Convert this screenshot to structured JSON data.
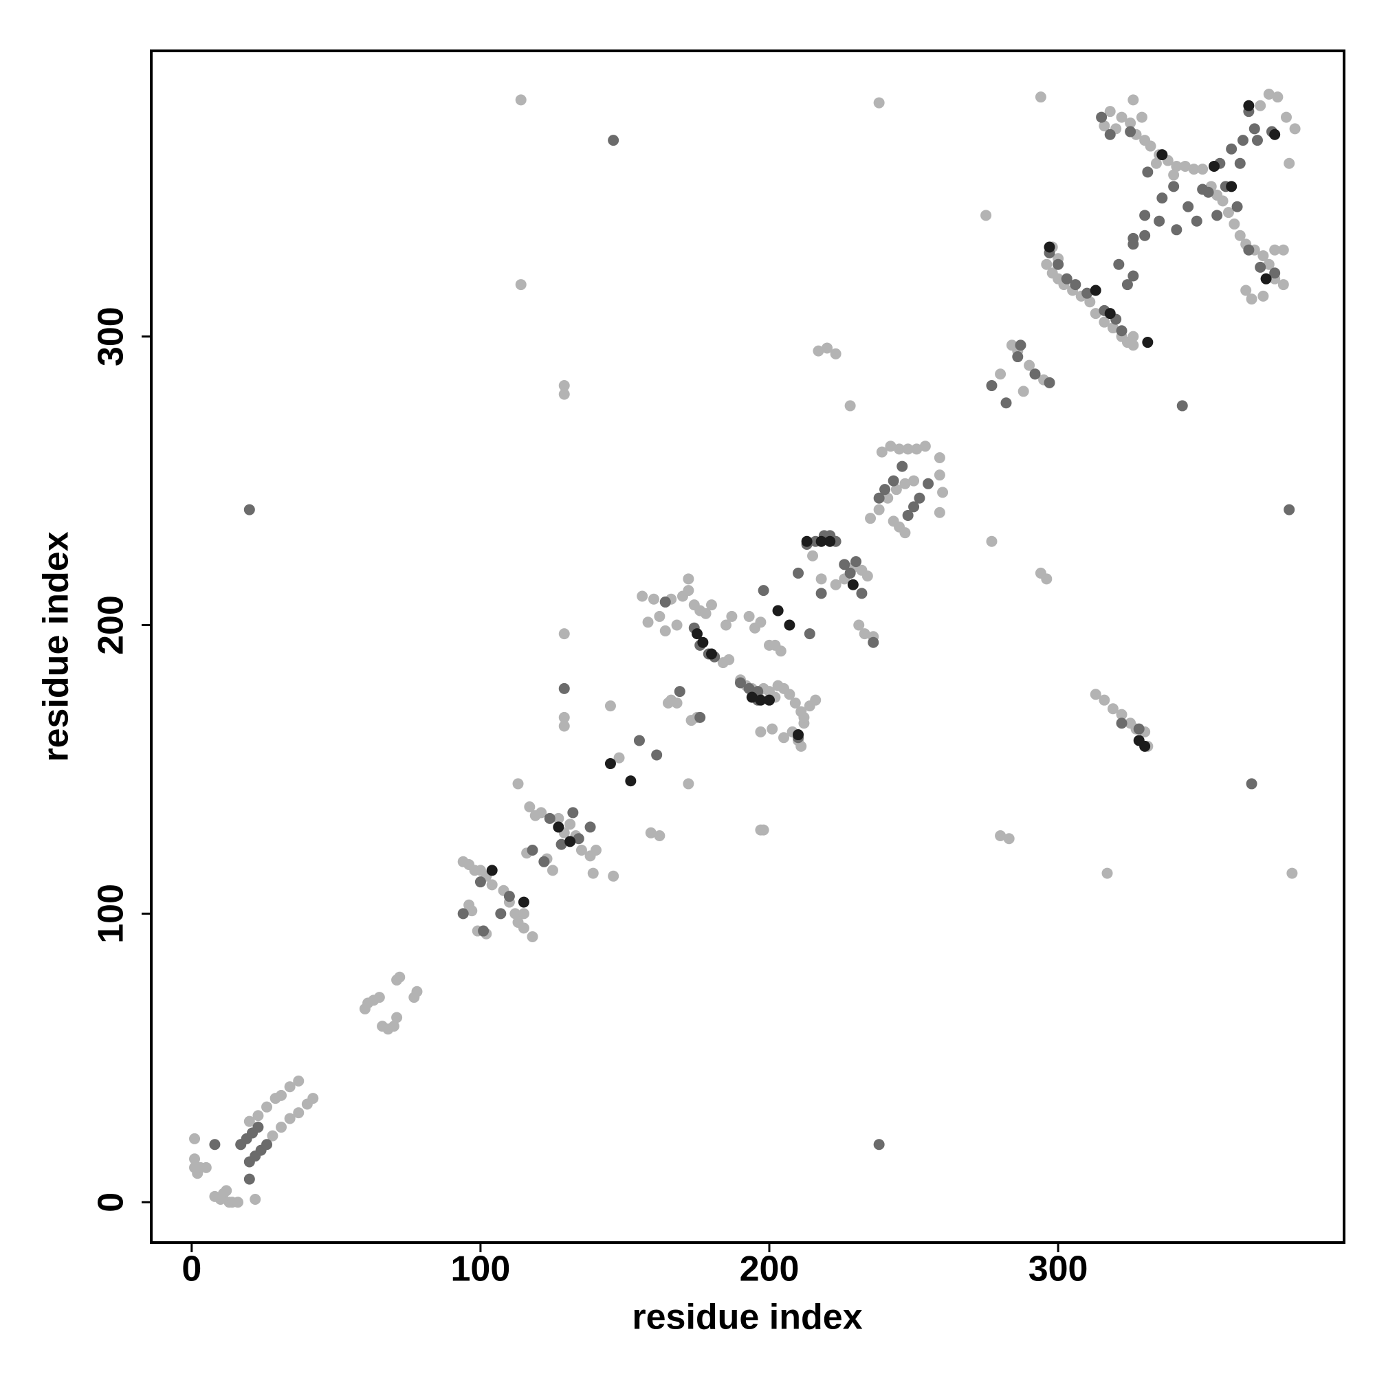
{
  "chart_data": {
    "type": "scatter",
    "x_label": "residue index",
    "y_label": "residue index",
    "xlim": [
      -14,
      399
    ],
    "ylim": [
      -14,
      399
    ],
    "xticks": [
      0,
      100,
      200,
      300
    ],
    "yticks": [
      0,
      100,
      200,
      300
    ],
    "grid": false,
    "series": [
      {
        "color": "#b3b3b3",
        "x": [
          1,
          1,
          1,
          2,
          3,
          5,
          8,
          10,
          11,
          12,
          13,
          14,
          16,
          17,
          20,
          23,
          26,
          29,
          31,
          34,
          37,
          28,
          31,
          34,
          37,
          40,
          42,
          22,
          60,
          61,
          63,
          65,
          66,
          68,
          70,
          71,
          71,
          72,
          77,
          78,
          94,
          96,
          96,
          97,
          98,
          100,
          102,
          104,
          99,
          102,
          108,
          110,
          112,
          113,
          115,
          118,
          115,
          116,
          117,
          119,
          121,
          123,
          125,
          127,
          129,
          131,
          133,
          135,
          138,
          139,
          140,
          113,
          146,
          145,
          148,
          159,
          162,
          165,
          166,
          168,
          172,
          173,
          175,
          156,
          160,
          162,
          164,
          166,
          168,
          170,
          172,
          172,
          174,
          176,
          178,
          180,
          184,
          186,
          190,
          192,
          194,
          196,
          198,
          200,
          202,
          203,
          205,
          207,
          209,
          211,
          212,
          214,
          216,
          193,
          195,
          197,
          200,
          202,
          204,
          197,
          201,
          205,
          208,
          211,
          197,
          198,
          187,
          185,
          164,
          158,
          212,
          210,
          215,
          218,
          221,
          223,
          226,
          229,
          232,
          234,
          231,
          233,
          235,
          238,
          241,
          244,
          247,
          250,
          236,
          239,
          242,
          245,
          248,
          251,
          254,
          259,
          259,
          260,
          259,
          243,
          245,
          247,
          217,
          220,
          223,
          228,
          238,
          114,
          114,
          129,
          129,
          129,
          129,
          129,
          275,
          277,
          294,
          296,
          294,
          280,
          283,
          317,
          381,
          280,
          284,
          286,
          288,
          290,
          292,
          295,
          297,
          296,
          298,
          300,
          302,
          305,
          308,
          311,
          313,
          316,
          319,
          322,
          324,
          326,
          326,
          313,
          316,
          319,
          322,
          325,
          327,
          330,
          331,
          298,
          300,
          316,
          318,
          320,
          322,
          325,
          327,
          330,
          332,
          335,
          338,
          341,
          344,
          347,
          350,
          353,
          355,
          357,
          359,
          361,
          363,
          365,
          368,
          371,
          373,
          375,
          378,
          365,
          367,
          371,
          375,
          378,
          370,
          373,
          376,
          379,
          380,
          382,
          326,
          329,
          334,
          340
        ],
        "values": [
          22,
          15,
          12,
          10,
          12,
          12,
          2,
          1,
          3,
          4,
          0,
          0,
          0,
          20,
          28,
          30,
          33,
          36,
          37,
          40,
          42,
          23,
          26,
          29,
          31,
          34,
          36,
          1,
          67,
          69,
          70,
          71,
          61,
          60,
          61,
          64,
          77,
          78,
          71,
          73,
          118,
          117,
          103,
          101,
          115,
          115,
          113,
          110,
          94,
          93,
          108,
          104,
          100,
          97,
          95,
          92,
          100,
          121,
          137,
          134,
          135,
          119,
          115,
          133,
          128,
          131,
          127,
          122,
          120,
          114,
          122,
          145,
          113,
          172,
          154,
          128,
          127,
          173,
          174,
          173,
          145,
          167,
          168,
          210,
          209,
          203,
          208,
          209,
          200,
          210,
          212,
          216,
          207,
          205,
          204,
          207,
          187,
          188,
          181,
          179,
          178,
          176,
          178,
          177,
          175,
          179,
          178,
          176,
          173,
          170,
          166,
          172,
          174,
          203,
          199,
          201,
          193,
          193,
          191,
          163,
          164,
          161,
          163,
          158,
          129,
          129,
          203,
          200,
          198,
          201,
          168,
          160,
          224,
          216,
          231,
          214,
          216,
          220,
          219,
          217,
          200,
          197,
          237,
          240,
          244,
          247,
          249,
          250,
          196,
          260,
          262,
          261,
          261,
          261,
          262,
          258,
          252,
          246,
          239,
          236,
          234,
          232,
          295,
          296,
          294,
          276,
          381,
          382,
          318,
          283,
          280,
          197,
          168,
          165,
          342,
          229,
          218,
          216,
          383,
          127,
          126,
          114,
          114,
          287,
          297,
          295,
          281,
          290,
          287,
          285,
          284,
          325,
          322,
          320,
          318,
          316,
          314,
          312,
          308,
          305,
          303,
          300,
          298,
          297,
          300,
          176,
          174,
          171,
          169,
          166,
          164,
          163,
          158,
          331,
          327,
          373,
          378,
          372,
          376,
          374,
          370,
          368,
          366,
          363,
          361,
          359,
          359,
          358,
          358,
          352,
          349,
          347,
          343,
          339,
          335,
          332,
          330,
          328,
          325,
          320,
          318,
          316,
          313,
          314,
          330,
          330,
          380,
          384,
          383,
          376,
          360,
          372,
          382,
          376,
          360,
          356
        ]
      },
      {
        "color": "#6b6b6b",
        "x": [
          20,
          22,
          24,
          26,
          8,
          17,
          19,
          21,
          23,
          20,
          20,
          94,
          100,
          101,
          107,
          110,
          118,
          122,
          124,
          128,
          132,
          134,
          138,
          155,
          161,
          169,
          176,
          129,
          146,
          164,
          174,
          176,
          179,
          181,
          190,
          193,
          196,
          198,
          203,
          214,
          210,
          196,
          210,
          213,
          216,
          219,
          221,
          223,
          226,
          228,
          230,
          232,
          236,
          238,
          240,
          243,
          246,
          248,
          250,
          252,
          255,
          218,
          367,
          343,
          238,
          380,
          277,
          282,
          286,
          287,
          292,
          297,
          300,
          303,
          306,
          310,
          316,
          320,
          322,
          324,
          326,
          328,
          322,
          326,
          330,
          297,
          315,
          318,
          325,
          331,
          330,
          335,
          341,
          345,
          348,
          352,
          356,
          360,
          364,
          366,
          368,
          369,
          374,
          370,
          375,
          366,
          350,
          358,
          362,
          355,
          321,
          326,
          336,
          340,
          363
        ],
        "values": [
          14,
          16,
          18,
          20,
          20,
          20,
          22,
          24,
          26,
          8,
          240,
          100,
          111,
          94,
          100,
          106,
          122,
          118,
          133,
          124,
          135,
          126,
          130,
          160,
          155,
          177,
          168,
          178,
          368,
          208,
          199,
          193,
          190,
          189,
          180,
          178,
          177,
          212,
          205,
          197,
          161,
          174,
          218,
          228,
          229,
          231,
          231,
          229,
          221,
          218,
          222,
          211,
          194,
          244,
          247,
          250,
          255,
          238,
          241,
          244,
          249,
          211,
          145,
          276,
          20,
          240,
          283,
          277,
          293,
          297,
          287,
          329,
          325,
          320,
          318,
          315,
          309,
          306,
          302,
          318,
          321,
          164,
          166,
          334,
          335,
          284,
          376,
          370,
          371,
          357,
          342,
          340,
          337,
          345,
          340,
          350,
          360,
          365,
          368,
          378,
          372,
          368,
          371,
          324,
          322,
          330,
          351,
          352,
          345,
          342,
          325,
          332,
          348,
          352,
          360
        ]
      },
      {
        "color": "#1c1c1c",
        "x": [
          104,
          115,
          127,
          131,
          145,
          152,
          175,
          177,
          180,
          194,
          197,
          200,
          203,
          207,
          210,
          213,
          218,
          229,
          221,
          313,
          318,
          331,
          297,
          328,
          330,
          354,
          360,
          366,
          372,
          375,
          336
        ],
        "values": [
          115,
          104,
          130,
          125,
          152,
          146,
          197,
          194,
          190,
          175,
          174,
          174,
          205,
          200,
          162,
          229,
          229,
          214,
          229,
          316,
          308,
          298,
          331,
          160,
          158,
          359,
          352,
          380,
          320,
          370,
          363
        ]
      }
    ]
  }
}
